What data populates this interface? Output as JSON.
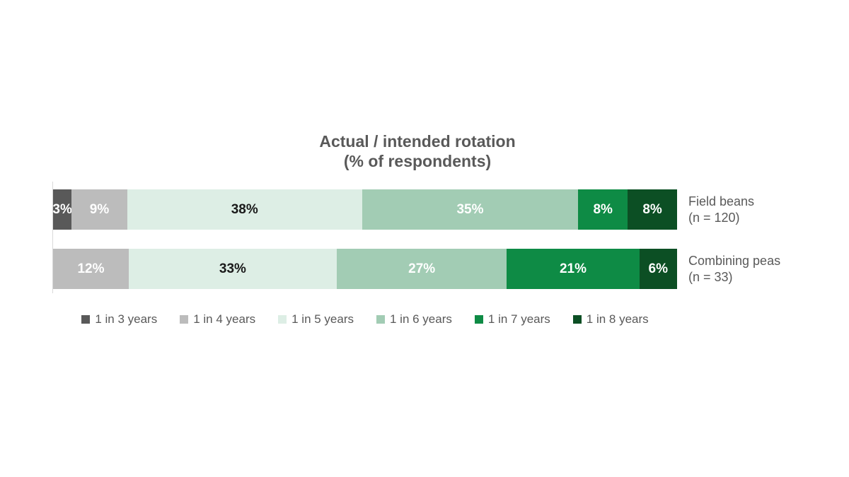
{
  "page": {
    "background": "#ffffff"
  },
  "chart_data": {
    "type": "bar",
    "subtype": "horizontal-stacked-100pct",
    "title": "Actual / intended rotation",
    "subtitle": "(% of respondents)",
    "title_color": "#595959",
    "label_color": "#595959",
    "axis_line_color": "#d9d9d9",
    "legend_position": "bottom",
    "grid": false,
    "value_suffix": "%",
    "categories": [
      "Field beans",
      "Combining peas"
    ],
    "category_labels": [
      {
        "line1": "Field beans",
        "line2": "(n = 120)"
      },
      {
        "line1": "Combining peas",
        "line2": "(n = 33)"
      }
    ],
    "series": [
      {
        "name": "1 in 3 years",
        "color": "#595959",
        "text_color": "#ffffff",
        "values": [
          3,
          0
        ]
      },
      {
        "name": "1 in 4 years",
        "color": "#bcbcbc",
        "text_color": "#ffffff",
        "values": [
          9,
          12
        ]
      },
      {
        "name": "1 in 5 years",
        "color": "#ddeee5",
        "text_color": "#1a1a1a",
        "values": [
          38,
          33
        ]
      },
      {
        "name": "1 in 6 years",
        "color": "#a2ccb4",
        "text_color": "#ffffff",
        "values": [
          35,
          27
        ]
      },
      {
        "name": "1 in 7 years",
        "color": "#0e8b45",
        "text_color": "#ffffff",
        "values": [
          8,
          21
        ]
      },
      {
        "name": "1 in 8 years",
        "color": "#0c4f24",
        "text_color": "#ffffff",
        "values": [
          8,
          6
        ]
      }
    ]
  }
}
